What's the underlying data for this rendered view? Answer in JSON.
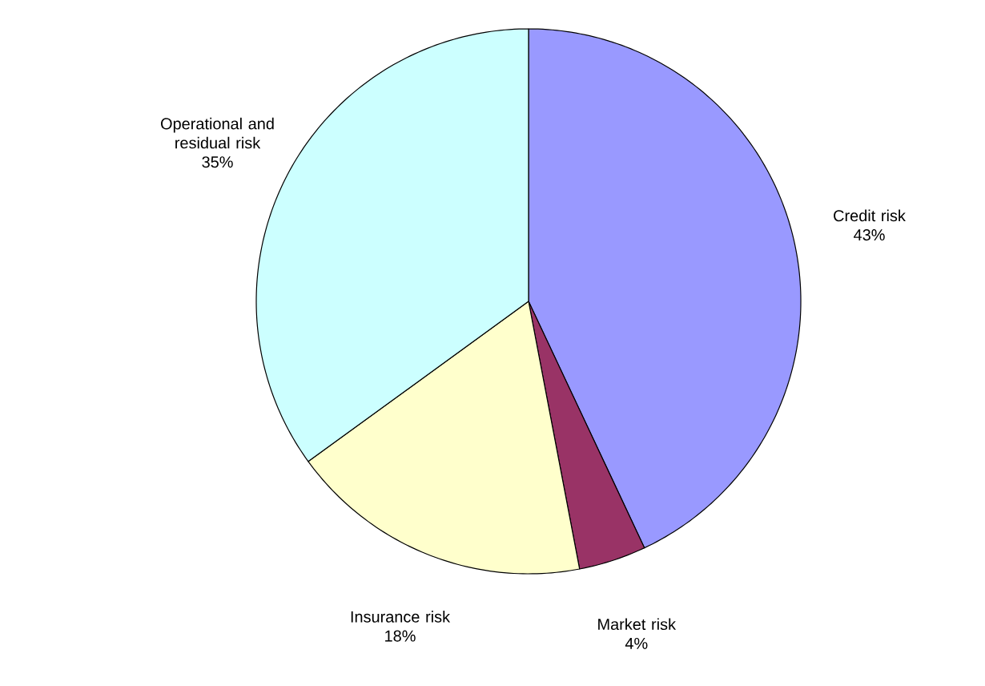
{
  "chart_data": {
    "type": "pie",
    "categories": [
      "Credit risk",
      "Market risk",
      "Insurance risk",
      "Operational and residual risk"
    ],
    "values": [
      43,
      4,
      18,
      35
    ],
    "value_labels": [
      "43%",
      "4%",
      "18%",
      "35%"
    ],
    "colors": [
      "#9999ff",
      "#993366",
      "#ffffcc",
      "#ccffff"
    ]
  }
}
